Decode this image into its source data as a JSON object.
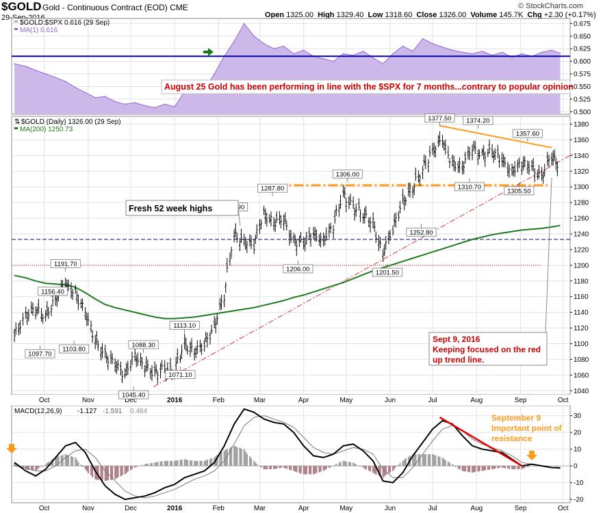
{
  "header": {
    "symbol": "$GOLD",
    "name": "Gold - Continuous Contract (EOD)",
    "exchange": "CME",
    "date": "29-Sep-2016",
    "open_label": "Open",
    "open": "1325.00",
    "high_label": "High",
    "high": "1329.40",
    "low_label": "Low",
    "low": "1318.60",
    "close_label": "Close",
    "close": "1326.00",
    "volume_label": "Volume",
    "volume": "145.7K",
    "chg_label": "Chg",
    "chg": "+2.30 (+0.17%)",
    "credit": "© StockCharts.com"
  },
  "colors": {
    "ratio_fill": "#cdb8ea",
    "ratio_line": "#9068d0",
    "blue_line": "#0000b0",
    "ma200": "#1f7a1f",
    "orange": "#ff9a1a",
    "red": "#cc0000",
    "trend_red": "#e03030",
    "price_bar": "#000000",
    "hist": "#a0a0a0",
    "hist_neg": "#b08088"
  },
  "chart_data": [
    {
      "type": "area",
      "panel": "ratio",
      "legend": [
        "$GOLD:$SPX 0.616 (29 Sep)",
        "MA(1) 0.616"
      ],
      "ylim": [
        0.495,
        0.685
      ],
      "yticks": [
        0.675,
        0.65,
        0.625,
        0.6,
        0.575,
        0.55,
        0.525,
        0.5
      ],
      "ytick_labels": [
        "0.675",
        "0.650",
        "0.625",
        "0.600",
        "0.575",
        "0.550",
        "0.525",
        "0.500"
      ],
      "x": [
        "2015-09-10",
        "2015-09-18",
        "2015-09-25",
        "2015-10-02",
        "2015-10-09",
        "2015-10-16",
        "2015-10-23",
        "2015-10-30",
        "2015-11-06",
        "2015-11-13",
        "2015-11-20",
        "2015-11-27",
        "2015-12-04",
        "2015-12-11",
        "2015-12-18",
        "2015-12-25",
        "2016-01-01",
        "2016-01-08",
        "2016-01-15",
        "2016-01-22",
        "2016-01-29",
        "2016-02-05",
        "2016-02-12",
        "2016-02-19",
        "2016-02-26",
        "2016-03-04",
        "2016-03-11",
        "2016-03-18",
        "2016-03-25",
        "2016-04-01",
        "2016-04-08",
        "2016-04-15",
        "2016-04-22",
        "2016-04-29",
        "2016-05-06",
        "2016-05-13",
        "2016-05-20",
        "2016-05-27",
        "2016-06-03",
        "2016-06-10",
        "2016-06-17",
        "2016-06-24",
        "2016-07-01",
        "2016-07-08",
        "2016-07-15",
        "2016-07-22",
        "2016-07-29",
        "2016-08-05",
        "2016-08-12",
        "2016-08-19",
        "2016-08-26",
        "2016-09-02",
        "2016-09-09",
        "2016-09-16",
        "2016-09-23",
        "2016-09-29"
      ],
      "values": [
        0.595,
        0.59,
        0.582,
        0.575,
        0.568,
        0.56,
        0.548,
        0.538,
        0.528,
        0.53,
        0.52,
        0.515,
        0.518,
        0.512,
        0.508,
        0.515,
        0.51,
        0.54,
        0.56,
        0.545,
        0.575,
        0.61,
        0.64,
        0.675,
        0.65,
        0.635,
        0.625,
        0.63,
        0.615,
        0.622,
        0.61,
        0.605,
        0.6,
        0.615,
        0.612,
        0.62,
        0.607,
        0.595,
        0.615,
        0.63,
        0.62,
        0.645,
        0.635,
        0.628,
        0.622,
        0.618,
        0.615,
        0.62,
        0.612,
        0.618,
        0.608,
        0.615,
        0.61,
        0.618,
        0.622,
        0.616
      ],
      "reference_line": 0.61,
      "annotation": "August 25 Gold has been performing in line with the $SPX for 7 months...contrary to popular opinion"
    },
    {
      "type": "ohlc",
      "panel": "price",
      "legend": [
        "$GOLD (Daily) 1326.00 (29 Sep)",
        "MA(200) 1250.73"
      ],
      "ylim": [
        1035,
        1390
      ],
      "yticks": [
        1040,
        1060,
        1080,
        1100,
        1120,
        1140,
        1160,
        1180,
        1200,
        1220,
        1240,
        1260,
        1280,
        1300,
        1320,
        1340,
        1360,
        1380
      ],
      "ytick_labels": [
        "1040",
        "1060",
        "1080",
        "1100",
        "1120",
        "1140",
        "1160",
        "1180",
        "1200",
        "1220",
        "1240",
        "1260",
        "1280",
        "1300",
        "1320",
        "1340",
        "1360",
        "1380"
      ],
      "x": [
        "2015-09-10",
        "2015-09-18",
        "2015-09-25",
        "2015-10-02",
        "2015-10-09",
        "2015-10-16",
        "2015-10-23",
        "2015-10-30",
        "2015-11-06",
        "2015-11-13",
        "2015-11-20",
        "2015-11-27",
        "2015-12-04",
        "2015-12-11",
        "2015-12-18",
        "2015-12-25",
        "2016-01-01",
        "2016-01-08",
        "2016-01-15",
        "2016-01-22",
        "2016-01-29",
        "2016-02-05",
        "2016-02-12",
        "2016-02-19",
        "2016-02-26",
        "2016-03-04",
        "2016-03-11",
        "2016-03-18",
        "2016-03-25",
        "2016-04-01",
        "2016-04-08",
        "2016-04-15",
        "2016-04-22",
        "2016-04-29",
        "2016-05-06",
        "2016-05-13",
        "2016-05-20",
        "2016-05-27",
        "2016-06-03",
        "2016-06-10",
        "2016-06-17",
        "2016-06-24",
        "2016-07-01",
        "2016-07-08",
        "2016-07-15",
        "2016-07-22",
        "2016-07-29",
        "2016-08-05",
        "2016-08-12",
        "2016-08-19",
        "2016-08-26",
        "2016-09-02",
        "2016-09-09",
        "2016-09-16",
        "2016-09-23",
        "2016-09-29"
      ],
      "close": [
        1110,
        1135,
        1145,
        1135,
        1155,
        1176,
        1165,
        1142,
        1105,
        1085,
        1075,
        1060,
        1085,
        1072,
        1062,
        1068,
        1065,
        1100,
        1090,
        1098,
        1120,
        1160,
        1240,
        1230,
        1225,
        1265,
        1255,
        1260,
        1230,
        1228,
        1240,
        1232,
        1250,
        1290,
        1275,
        1265,
        1255,
        1215,
        1245,
        1280,
        1298,
        1322,
        1345,
        1360,
        1330,
        1325,
        1350,
        1340,
        1345,
        1335,
        1320,
        1330,
        1325,
        1312,
        1340,
        1326
      ],
      "ma200": [
        1187,
        1184,
        1180,
        1177,
        1176,
        1175,
        1172,
        1165,
        1157,
        1150,
        1146,
        1143,
        1140,
        1137,
        1134,
        1132,
        1132,
        1133,
        1134,
        1136,
        1138,
        1140,
        1142,
        1144,
        1146,
        1149,
        1152,
        1155,
        1159,
        1162,
        1166,
        1170,
        1174,
        1178,
        1183,
        1188,
        1193,
        1197,
        1201,
        1205,
        1209,
        1213,
        1217,
        1221,
        1225,
        1229,
        1233,
        1236,
        1239,
        1241,
        1243,
        1245,
        1246,
        1247,
        1249,
        1250.73
      ],
      "labels": [
        {
          "date": "2015-09-28",
          "text": "1097.70",
          "pos": "below"
        },
        {
          "date": "2015-10-07",
          "text": "1156.40",
          "pos": "above"
        },
        {
          "date": "2015-10-16",
          "text": "1191.70",
          "pos": "above"
        },
        {
          "date": "2015-10-22",
          "text": "1103.80",
          "pos": "below"
        },
        {
          "date": "2015-12-03",
          "text": "1045.40",
          "pos": "below"
        },
        {
          "date": "2015-12-10",
          "text": "1088.30",
          "pos": "above"
        },
        {
          "date": "2016-01-05",
          "text": "1071.10",
          "pos": "below"
        },
        {
          "date": "2016-01-08",
          "text": "1113.10",
          "pos": "above"
        },
        {
          "date": "2016-02-11",
          "text": "1263.90",
          "pos": "above"
        },
        {
          "date": "2016-03-10",
          "text": "1287.80",
          "pos": "above"
        },
        {
          "date": "2016-03-28",
          "text": "1206.00",
          "pos": "below"
        },
        {
          "date": "2016-05-02",
          "text": "1306.00",
          "pos": "above"
        },
        {
          "date": "2016-05-30",
          "text": "1201.50",
          "pos": "below"
        },
        {
          "date": "2016-06-23",
          "text": "1252.80",
          "pos": "below"
        },
        {
          "date": "2016-07-06",
          "text": "1377.50",
          "pos": "above"
        },
        {
          "date": "2016-07-27",
          "text": "1310.70",
          "pos": "below"
        },
        {
          "date": "2016-08-02",
          "text": "1374.20",
          "pos": "above"
        },
        {
          "date": "2016-08-31",
          "text": "1305.50",
          "pos": "below"
        },
        {
          "date": "2016-09-06",
          "text": "1357.60",
          "pos": "above"
        }
      ],
      "support_level": 1302,
      "blue_level": 1233,
      "red_level": 1200,
      "trendline_red": [
        {
          "date": "2015-12-17",
          "value": 1045
        },
        {
          "date": "2016-10-08",
          "value": 1342
        }
      ],
      "trendline_orange": [
        {
          "date": "2016-07-06",
          "value": 1378
        },
        {
          "date": "2016-09-23",
          "value": 1350
        }
      ],
      "annotations": [
        "Fresh 52 week highs",
        "Sept 9, 2016",
        "Keeping focused on the red",
        "up trend line."
      ]
    },
    {
      "type": "line",
      "panel": "macd",
      "legend": [
        "MACD(12,26,9)",
        "-1.127",
        "-1.591",
        "0.464"
      ],
      "ylim": [
        -22,
        36
      ],
      "yticks": [
        30,
        20,
        10,
        0,
        -10,
        -20
      ],
      "ytick_labels": [
        "30",
        "20",
        "10",
        "0",
        "-10",
        "-20"
      ],
      "x": [
        "2015-09-10",
        "2015-09-18",
        "2015-09-25",
        "2015-10-02",
        "2015-10-09",
        "2015-10-16",
        "2015-10-23",
        "2015-10-30",
        "2015-11-06",
        "2015-11-13",
        "2015-11-20",
        "2015-11-27",
        "2015-12-04",
        "2015-12-11",
        "2015-12-18",
        "2015-12-25",
        "2016-01-01",
        "2016-01-08",
        "2016-01-15",
        "2016-01-22",
        "2016-01-29",
        "2016-02-05",
        "2016-02-12",
        "2016-02-19",
        "2016-02-26",
        "2016-03-04",
        "2016-03-11",
        "2016-03-18",
        "2016-03-25",
        "2016-04-01",
        "2016-04-08",
        "2016-04-15",
        "2016-04-22",
        "2016-04-29",
        "2016-05-06",
        "2016-05-13",
        "2016-05-20",
        "2016-05-27",
        "2016-06-03",
        "2016-06-10",
        "2016-06-17",
        "2016-06-24",
        "2016-07-01",
        "2016-07-08",
        "2016-07-15",
        "2016-07-22",
        "2016-07-29",
        "2016-08-05",
        "2016-08-12",
        "2016-08-19",
        "2016-08-26",
        "2016-09-02",
        "2016-09-09",
        "2016-09-16",
        "2016-09-23",
        "2016-09-29"
      ],
      "series": [
        {
          "name": "MACD",
          "values": [
            2,
            -3,
            -6,
            -2,
            5,
            12,
            14,
            8,
            -3,
            -12,
            -17,
            -20,
            -19,
            -18,
            -16,
            -13,
            -11,
            -7,
            -5,
            -3,
            2,
            12,
            25,
            34,
            32,
            28,
            26,
            25,
            20,
            12,
            6,
            5,
            7,
            12,
            13,
            9,
            3,
            -9,
            -10,
            -4,
            6,
            14,
            22,
            27,
            25,
            18,
            12,
            10,
            9,
            8,
            4,
            0,
            1,
            0,
            -1,
            -1.127
          ]
        },
        {
          "name": "Signal",
          "values": [
            0,
            -1,
            -3,
            -3,
            0,
            5,
            9,
            10,
            5,
            -3,
            -9,
            -15,
            -18,
            -19,
            -18,
            -16,
            -14,
            -11,
            -8,
            -6,
            -3,
            3,
            13,
            24,
            29,
            30,
            28,
            26,
            23,
            17,
            11,
            8,
            7,
            9,
            11,
            10,
            7,
            -2,
            -7,
            -7,
            -1,
            7,
            15,
            22,
            24,
            21,
            16,
            13,
            11,
            9,
            6,
            2,
            1,
            0,
            -1,
            -1.591
          ]
        },
        {
          "name": "Histogram",
          "values": [
            2,
            -2,
            -3,
            1,
            5,
            7,
            5,
            -2,
            -8,
            -9,
            -8,
            -5,
            -1,
            1,
            2,
            3,
            3,
            4,
            3,
            3,
            5,
            9,
            12,
            10,
            3,
            -2,
            -2,
            -1,
            -3,
            -5,
            -5,
            -3,
            0,
            3,
            2,
            -1,
            -4,
            -7,
            -3,
            3,
            7,
            7,
            7,
            5,
            1,
            -3,
            -4,
            -3,
            -2,
            -1,
            -2,
            -2,
            0,
            0,
            0,
            0.464
          ]
        }
      ],
      "annotations": [
        "September 9",
        "Important point of",
        "resistance"
      ]
    }
  ],
  "x_axis": {
    "labels": [
      "Oct",
      "Nov",
      "Dec",
      "2016",
      "Feb",
      "Mar",
      "Apr",
      "May",
      "Jun",
      "Jul",
      "Aug",
      "Sep",
      "Oct"
    ],
    "dates": [
      "2015-10-01",
      "2015-11-01",
      "2015-12-01",
      "2016-01-01",
      "2016-02-01",
      "2016-03-01",
      "2016-04-01",
      "2016-05-01",
      "2016-06-01",
      "2016-07-01",
      "2016-08-01",
      "2016-09-01",
      "2016-10-01"
    ]
  }
}
